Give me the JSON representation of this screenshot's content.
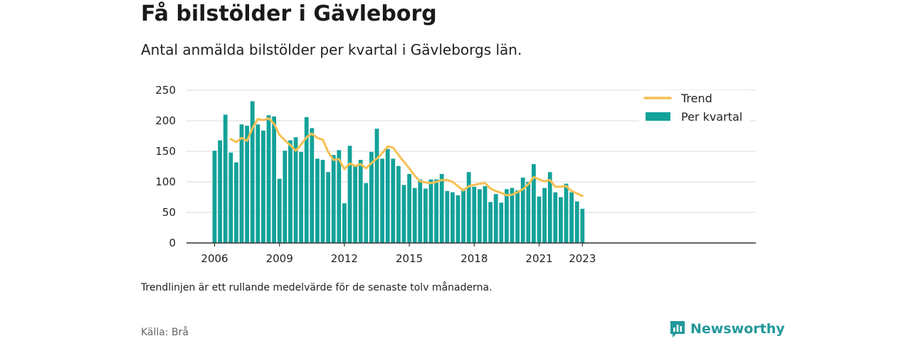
{
  "header": {
    "title": "Få bilstölder i Gävleborg",
    "subtitle": "Antal anmälda bilstölder per kvartal i Gävleborgs län."
  },
  "footer": {
    "note": "Trendlinjen är ett rullande medelvärde för de senaste tolv månaderna.",
    "source": "Källa: Brå",
    "brand": "Newsworthy"
  },
  "colors": {
    "bars": "#13a29a",
    "trend": "#f6c052",
    "grid": "#d9d9d9",
    "axis": "#333333",
    "brand": "#22989a"
  },
  "chart_data": {
    "type": "bar",
    "title": "Få bilstölder i Gävleborg",
    "subtitle": "Antal anmälda bilstölder per kvartal i Gävleborgs län.",
    "xlabel": "",
    "ylabel": "",
    "ylim": [
      0,
      250
    ],
    "yticks": [
      "0",
      "50",
      "100",
      "150",
      "200",
      "250"
    ],
    "xticks": [
      "2006",
      "2009",
      "2012",
      "2015",
      "2018",
      "2021",
      "2023"
    ],
    "grid": true,
    "legend": {
      "position": "top-right",
      "entries": [
        "Trend",
        "Per kvartal"
      ]
    },
    "categories": [
      "2006 Q1",
      "2006 Q2",
      "2006 Q3",
      "2006 Q4",
      "2007 Q1",
      "2007 Q2",
      "2007 Q3",
      "2007 Q4",
      "2008 Q1",
      "2008 Q2",
      "2008 Q3",
      "2008 Q4",
      "2009 Q1",
      "2009 Q2",
      "2009 Q3",
      "2009 Q4",
      "2010 Q1",
      "2010 Q2",
      "2010 Q3",
      "2010 Q4",
      "2011 Q1",
      "2011 Q2",
      "2011 Q3",
      "2011 Q4",
      "2012 Q1",
      "2012 Q2",
      "2012 Q3",
      "2012 Q4",
      "2013 Q1",
      "2013 Q2",
      "2013 Q3",
      "2013 Q4",
      "2014 Q1",
      "2014 Q2",
      "2014 Q3",
      "2014 Q4",
      "2015 Q1",
      "2015 Q2",
      "2015 Q3",
      "2015 Q4",
      "2016 Q1",
      "2016 Q2",
      "2016 Q3",
      "2016 Q4",
      "2017 Q1",
      "2017 Q2",
      "2017 Q3",
      "2017 Q4",
      "2018 Q1",
      "2018 Q2",
      "2018 Q3",
      "2018 Q4",
      "2019 Q1",
      "2019 Q2",
      "2019 Q3",
      "2019 Q4",
      "2020 Q1",
      "2020 Q2",
      "2020 Q3",
      "2020 Q4",
      "2021 Q1",
      "2021 Q2",
      "2021 Q3",
      "2021 Q4",
      "2022 Q1",
      "2022 Q2",
      "2022 Q3",
      "2022 Q4",
      "2023 Q1"
    ],
    "series": [
      {
        "name": "Per kvartal",
        "kind": "bar",
        "values": [
          151,
          168,
          210,
          148,
          132,
          194,
          192,
          232,
          194,
          184,
          209,
          207,
          105,
          151,
          168,
          173,
          149,
          206,
          188,
          138,
          136,
          116,
          144,
          152,
          65,
          159,
          127,
          136,
          98,
          149,
          187,
          138,
          154,
          138,
          126,
          95,
          113,
          90,
          104,
          89,
          104,
          104,
          113,
          85,
          83,
          78,
          89,
          116,
          92,
          88,
          93,
          67,
          80,
          66,
          88,
          90,
          86,
          107,
          100,
          129,
          76,
          90,
          116,
          83,
          75,
          97,
          83,
          68,
          56
        ]
      },
      {
        "name": "Trend",
        "kind": "line",
        "values": [
          null,
          null,
          null,
          170,
          165,
          172,
          167,
          188,
          203,
          201,
          204,
          195,
          177,
          168,
          160,
          151,
          161,
          173,
          179,
          172,
          169,
          149,
          136,
          137,
          121,
          130,
          126,
          129,
          122,
          131,
          138,
          147,
          158,
          156,
          144,
          133,
          122,
          110,
          101,
          99,
          98,
          100,
          103,
          103,
          100,
          93,
          86,
          93,
          95,
          97,
          98,
          89,
          85,
          82,
          78,
          79,
          83,
          88,
          96,
          108,
          104,
          101,
          103,
          92,
          92,
          93,
          85,
          81,
          77
        ]
      }
    ]
  }
}
